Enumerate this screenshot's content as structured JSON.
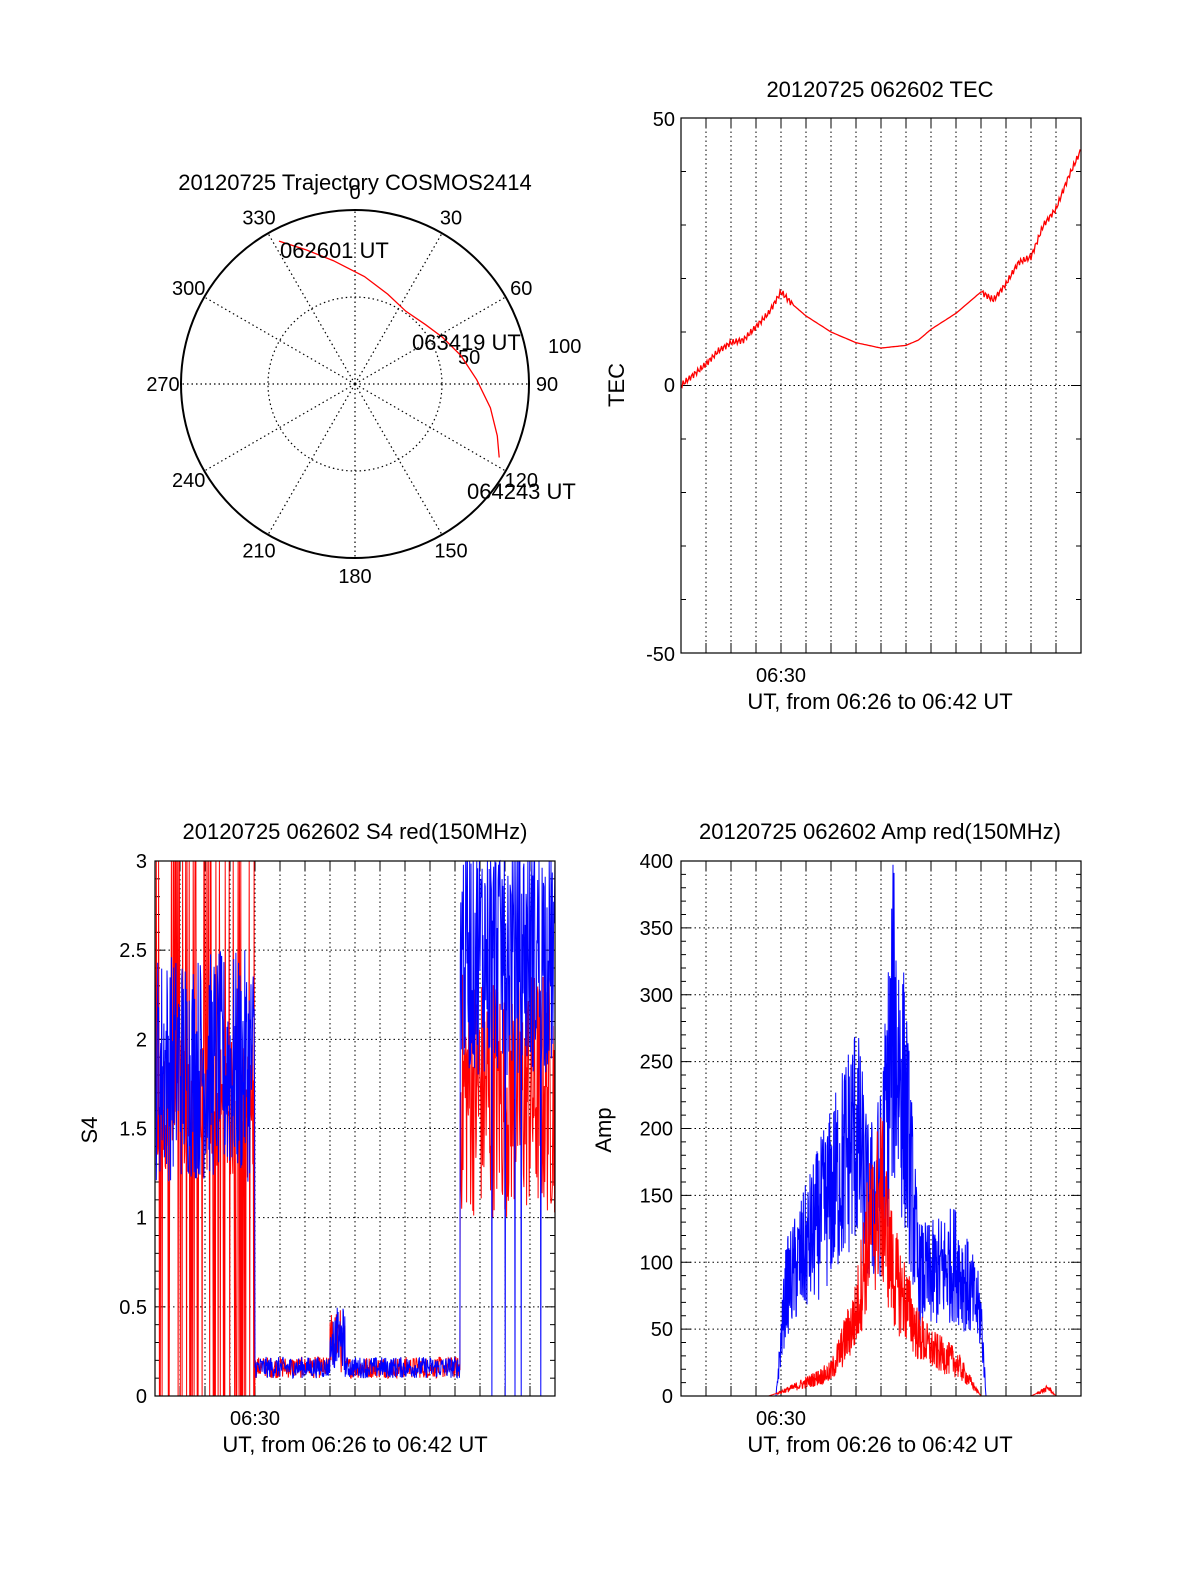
{
  "chart_data": [
    {
      "type": "polar",
      "title": "20120725 Trajectory COSMOS2414",
      "angle_labels": [
        "0",
        "30",
        "60",
        "90",
        "120",
        "150",
        "180",
        "210",
        "240",
        "270",
        "300",
        "330"
      ],
      "radial_tick_labels": [
        "50",
        "100"
      ],
      "rlim": [
        0,
        100
      ],
      "grid": true,
      "trajectory": {
        "color": "#ff0000",
        "points": [
          {
            "az": 332,
            "elev_offset": 93
          },
          {
            "az": 340,
            "elev_offset": 82
          },
          {
            "az": 350,
            "elev_offset": 72
          },
          {
            "az": 5,
            "elev_offset": 62
          },
          {
            "az": 20,
            "elev_offset": 55
          },
          {
            "az": 35,
            "elev_offset": 51
          },
          {
            "az": 50,
            "elev_offset": 53
          },
          {
            "az": 62,
            "elev_offset": 57
          },
          {
            "az": 75,
            "elev_offset": 63
          },
          {
            "az": 88,
            "elev_offset": 70
          },
          {
            "az": 100,
            "elev_offset": 79
          },
          {
            "az": 110,
            "elev_offset": 87
          },
          {
            "az": 117,
            "elev_offset": 93
          }
        ]
      },
      "annotations": [
        "062601 UT",
        "063419 UT",
        "064243 UT"
      ]
    },
    {
      "type": "line",
      "title": "20120725 062602 TEC",
      "xlabel": "UT, from 06:26 to 06:42 UT",
      "ylabel": "TEC",
      "x_tick_labels": [
        "06:30"
      ],
      "ylim": [
        -50,
        50
      ],
      "y_tick_labels": [
        "-50",
        "0",
        "50"
      ],
      "grid": "vertical dotted",
      "series": [
        {
          "color": "#ff0000",
          "x_minutes": [
            0,
            0.5,
            1,
            1.5,
            2,
            2.5,
            3,
            3.5,
            4,
            4.5,
            5,
            6,
            7,
            8,
            9,
            9.5,
            10,
            11,
            12,
            12.5,
            13,
            13.5,
            14,
            14.5,
            15,
            15.5,
            16
          ],
          "values": [
            0,
            2,
            4,
            6.5,
            8,
            8.5,
            11,
            13.5,
            17.5,
            15,
            13,
            10,
            8,
            7,
            7.5,
            8.5,
            10.5,
            13.5,
            17.5,
            16,
            19,
            23,
            24,
            30,
            33,
            39,
            44
          ]
        }
      ]
    },
    {
      "type": "line",
      "title": "20120725 062602 S4 red(150MHz)",
      "xlabel": "UT, from 06:26 to 06:42 UT",
      "ylabel": "S4",
      "x_tick_labels": [
        "06:30"
      ],
      "ylim": [
        0,
        3
      ],
      "y_tick_labels": [
        "0",
        "0.5",
        "1",
        "1.5",
        "2",
        "2.5",
        "3"
      ],
      "grid": true,
      "series": [
        {
          "color": "#ff0000",
          "segments": [
            {
              "x_range_minutes": [
                0,
                4
              ],
              "approx_level": 1.5,
              "behavior": "spiking 0 to 3"
            },
            {
              "x_range_minutes": [
                4,
                12.2
              ],
              "approx_level": 0.15
            },
            {
              "x_range_minutes": [
                12.2,
                16
              ],
              "approx_level": 1.7,
              "behavior": "noisy"
            }
          ]
        },
        {
          "color": "#0000ff",
          "segments": [
            {
              "x_range_minutes": [
                0,
                4
              ],
              "approx_level": 1.8,
              "behavior": "noisy"
            },
            {
              "x_range_minutes": [
                4,
                12.2
              ],
              "approx_level": 0.15
            },
            {
              "x_range_minutes": [
                12.2,
                16
              ],
              "approx_level": 2.5,
              "behavior": "saturating near 3"
            }
          ]
        }
      ]
    },
    {
      "type": "line",
      "title": "20120725 062602 Amp red(150MHz)",
      "xlabel": "UT, from 06:26 to 06:42 UT",
      "ylabel": "Amp",
      "x_tick_labels": [
        "06:30"
      ],
      "ylim": [
        0,
        400
      ],
      "y_tick_labels": [
        "0",
        "50",
        "100",
        "150",
        "200",
        "250",
        "300",
        "350",
        "400"
      ],
      "grid": true,
      "series": [
        {
          "color": "#ff0000",
          "x_minutes": [
            0,
            3.5,
            4,
            5,
            6,
            7,
            7.5,
            8,
            8.5,
            9,
            9.5,
            10,
            11,
            12,
            14,
            14.7,
            15,
            16
          ],
          "values": [
            0,
            0,
            3,
            10,
            18,
            60,
            120,
            150,
            90,
            70,
            45,
            35,
            25,
            0,
            0,
            6,
            0,
            0
          ]
        },
        {
          "color": "#0000ff",
          "x_minutes": [
            0,
            3.8,
            4.2,
            5,
            6,
            7,
            7.5,
            8,
            8.5,
            9,
            9.5,
            10,
            11,
            12,
            12.2,
            16
          ],
          "values": [
            0,
            0,
            80,
            110,
            150,
            200,
            140,
            160,
            280,
            210,
            90,
            90,
            100,
            60,
            0,
            0
          ]
        }
      ]
    }
  ]
}
